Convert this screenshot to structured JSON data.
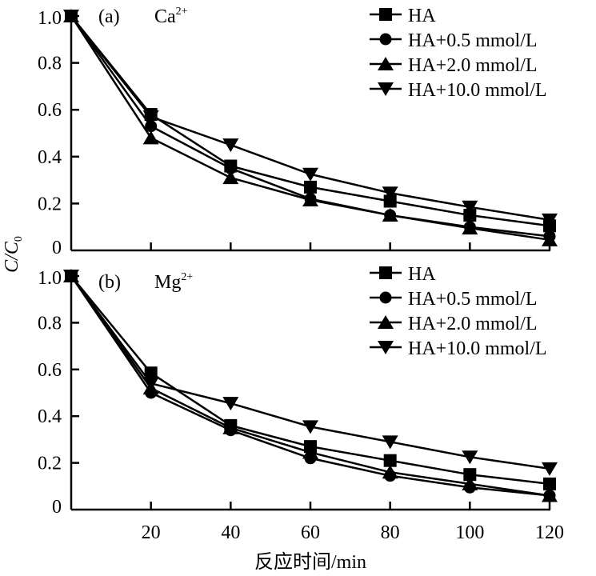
{
  "chart_data": [
    {
      "type": "line",
      "panel_label": "(a)",
      "ion": "Ca",
      "ion_charge": "2+",
      "x": [
        0,
        20,
        40,
        60,
        80,
        100,
        120
      ],
      "xlim": [
        0,
        120
      ],
      "ylim": [
        0,
        1.0
      ],
      "x_ticks": [
        20,
        40,
        60,
        80,
        100,
        120
      ],
      "y_ticks": [
        "0",
        "0.2",
        "0.4",
        "0.6",
        "0.8",
        "1.0"
      ],
      "legend_position": "top-right",
      "series": [
        {
          "name": "HA",
          "marker": "square",
          "values": [
            1.0,
            0.58,
            0.36,
            0.27,
            0.21,
            0.15,
            0.105
          ]
        },
        {
          "name": "HA+0.5 mmol/L",
          "marker": "circle",
          "values": [
            1.0,
            0.53,
            0.35,
            0.22,
            0.15,
            0.1,
            0.06
          ]
        },
        {
          "name": "HA+2.0 mmol/L",
          "marker": "triangle-up",
          "values": [
            1.0,
            0.48,
            0.31,
            0.215,
            0.15,
            0.095,
            0.045
          ]
        },
        {
          "name": "HA+10.0 mmol/L",
          "marker": "triangle-down",
          "values": [
            1.0,
            0.57,
            0.45,
            0.325,
            0.245,
            0.185,
            0.13
          ]
        }
      ]
    },
    {
      "type": "line",
      "panel_label": "(b)",
      "ion": "Mg",
      "ion_charge": "2+",
      "x": [
        0,
        20,
        40,
        60,
        80,
        100,
        120
      ],
      "xlim": [
        0,
        120
      ],
      "ylim": [
        0,
        1.0
      ],
      "x_ticks": [
        20,
        40,
        60,
        80,
        100,
        120
      ],
      "y_ticks": [
        "0",
        "0.2",
        "0.4",
        "0.6",
        "0.8",
        "1.0"
      ],
      "legend_position": "top-right",
      "series": [
        {
          "name": "HA",
          "marker": "square",
          "values": [
            1.0,
            0.585,
            0.36,
            0.27,
            0.21,
            0.15,
            0.11
          ]
        },
        {
          "name": "HA+0.5 mmol/L",
          "marker": "circle",
          "values": [
            1.0,
            0.5,
            0.34,
            0.22,
            0.145,
            0.095,
            0.06
          ]
        },
        {
          "name": "HA+2.0 mmol/L",
          "marker": "triangle-up",
          "values": [
            1.0,
            0.52,
            0.35,
            0.245,
            0.16,
            0.11,
            0.06
          ]
        },
        {
          "name": "HA+10.0 mmol/L",
          "marker": "triangle-down",
          "values": [
            1.0,
            0.54,
            0.455,
            0.355,
            0.29,
            0.225,
            0.175
          ]
        }
      ]
    }
  ],
  "axes": {
    "ylabel_main": "C",
    "ylabel_sub_main": "C",
    "ylabel_sub_index": "0",
    "xlabel": "反应时间/min"
  },
  "colors": {
    "line": "#000000",
    "background": "#ffffff"
  }
}
